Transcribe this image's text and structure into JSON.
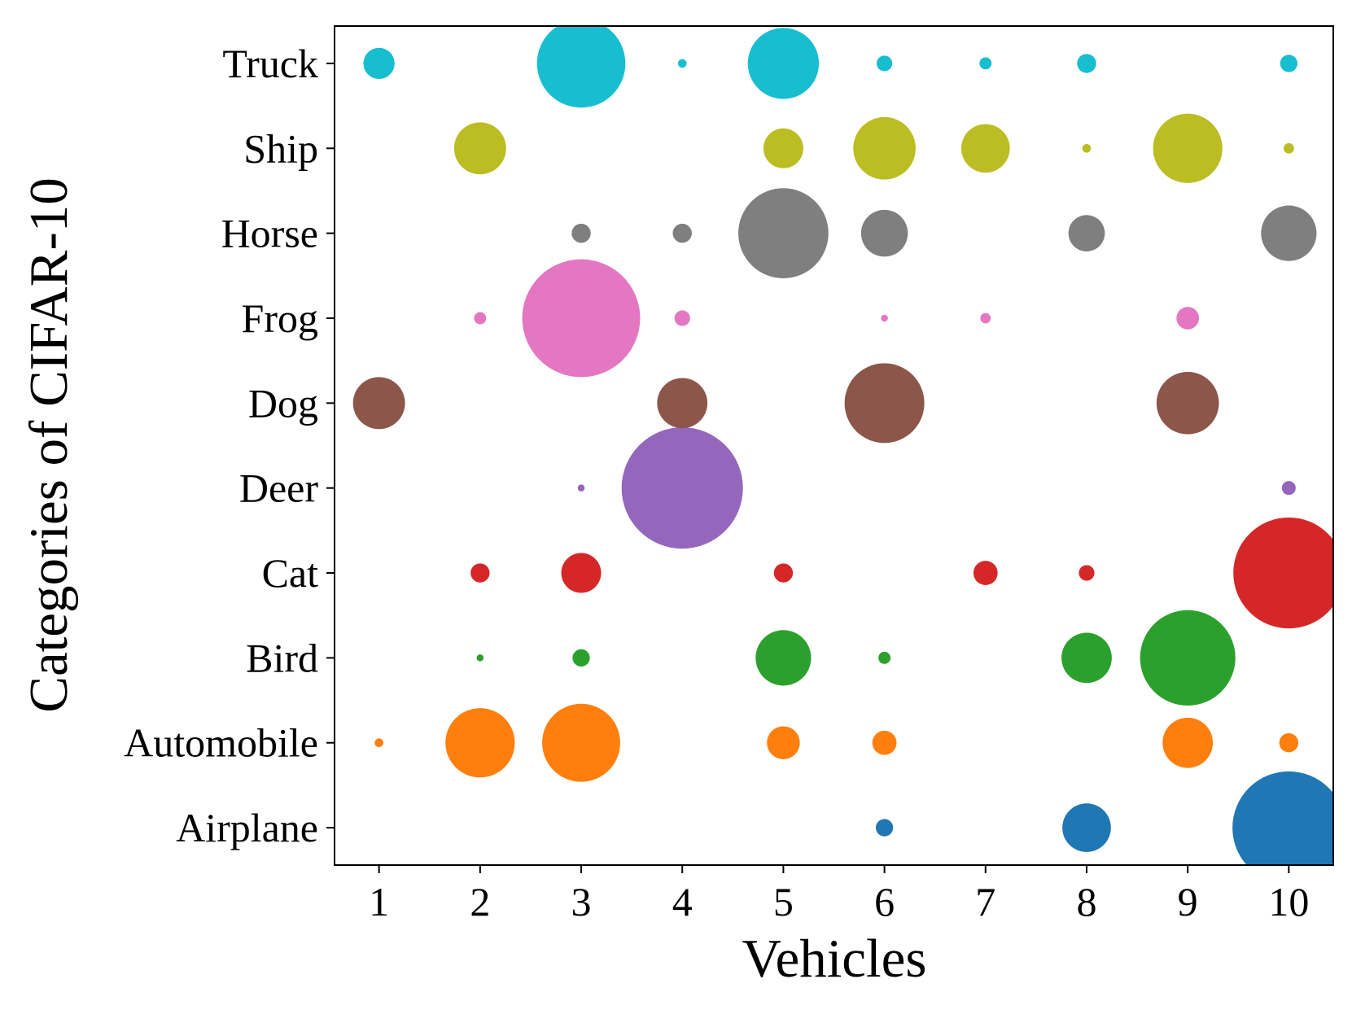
{
  "chart_data": {
    "type": "scatter",
    "x_label": "Vehicles",
    "y_label": "Categories of CIFAR-10",
    "categories": [
      "Airplane",
      "Automobile",
      "Bird",
      "Cat",
      "Deer",
      "Dog",
      "Frog",
      "Horse",
      "Ship",
      "Truck"
    ],
    "xlim": [
      0.56,
      10.44
    ],
    "xticks": [
      1,
      2,
      3,
      4,
      5,
      6,
      7,
      8,
      9,
      10
    ],
    "series": [
      {
        "color": "#1f77b4",
        "x": [
          6,
          8,
          10
        ],
        "sizes": [
          100,
          784,
          4225
        ]
      },
      {
        "color": "#ff7f0e",
        "x": [
          1,
          2,
          3,
          5,
          6,
          9,
          10
        ],
        "sizes": [
          25,
          1600,
          2025,
          361,
          196,
          841,
          121
        ]
      },
      {
        "color": "#2ca02c",
        "x": [
          2,
          3,
          5,
          6,
          8,
          9
        ],
        "sizes": [
          16,
          100,
          1024,
          49,
          841,
          3025
        ]
      },
      {
        "color": "#d62728",
        "x": [
          2,
          3,
          5,
          7,
          8,
          10
        ],
        "sizes": [
          121,
          529,
          121,
          196,
          81,
          4096
        ]
      },
      {
        "color": "#9467bd",
        "x": [
          3,
          4,
          10
        ],
        "sizes": [
          16,
          4900,
          64
        ]
      },
      {
        "color": "#8c564b",
        "x": [
          1,
          4,
          6,
          9
        ],
        "sizes": [
          900,
          841,
          2116,
          1296
        ]
      },
      {
        "color": "#e377c2",
        "x": [
          2,
          3,
          4,
          6,
          7,
          9
        ],
        "sizes": [
          49,
          4624,
          81,
          16,
          36,
          169
        ]
      },
      {
        "color": "#7f7f7f",
        "x": [
          3,
          4,
          5,
          6,
          8,
          10
        ],
        "sizes": [
          121,
          121,
          2704,
          729,
          441,
          1024
        ]
      },
      {
        "color": "#bcbd22",
        "x": [
          2,
          5,
          6,
          7,
          8,
          9,
          10
        ],
        "sizes": [
          900,
          529,
          1296,
          784,
          25,
          1600,
          36
        ]
      },
      {
        "color": "#17becf",
        "x": [
          1,
          3,
          4,
          5,
          6,
          7,
          8,
          10
        ],
        "sizes": [
          324,
          2601,
          25,
          1681,
          81,
          49,
          121,
          100
        ]
      }
    ]
  }
}
